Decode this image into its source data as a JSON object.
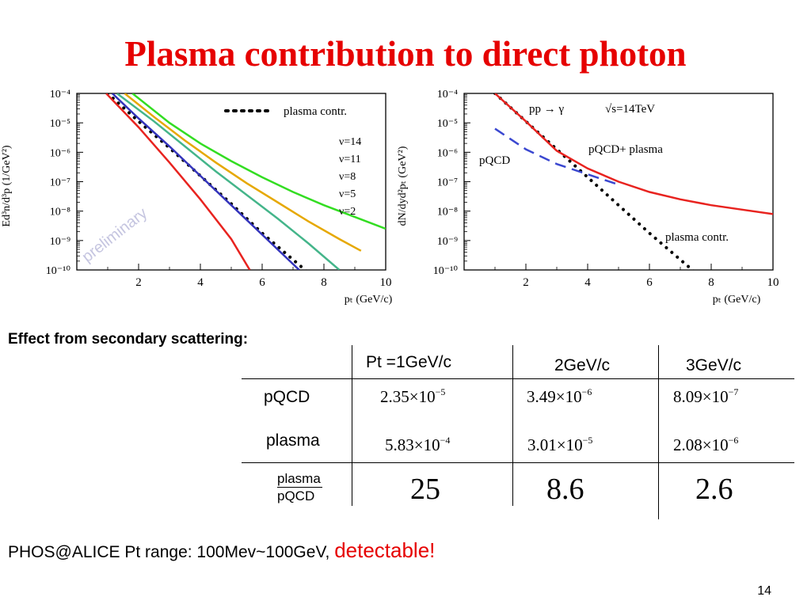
{
  "slide": {
    "title": "Plasma contribution to direct photon",
    "page_number": "14"
  },
  "plot_left": {
    "ylabel": "Ed³n/d³p (1/GeV²)",
    "xlabel": "pₜ (GeV/c)",
    "y_ticks": [
      "10⁻⁴",
      "10⁻⁵",
      "10⁻⁶",
      "10⁻⁷",
      "10⁻⁸",
      "10⁻⁹",
      "10⁻¹⁰"
    ],
    "x_ticks": [
      "2",
      "4",
      "6",
      "8",
      "10"
    ],
    "legend_plasma": "plasma contr.",
    "legend_nus": [
      "ν=14",
      "ν=11",
      "ν=8",
      "ν=5",
      "ν=2"
    ],
    "watermark": "preliminary"
  },
  "plot_right": {
    "ylabel": "dN/dyd²pₜ (GeV²)",
    "xlabel": "pₜ (GeV/c)",
    "y_ticks": [
      "10⁻⁴",
      "10⁻⁵",
      "10⁻⁶",
      "10⁻⁷",
      "10⁻⁸",
      "10⁻⁹",
      "10⁻¹⁰"
    ],
    "x_ticks": [
      "2",
      "4",
      "6",
      "8",
      "10"
    ],
    "process": "pp → γ",
    "energy": "√s=14TeV",
    "label_pqcd": "pQCD",
    "label_sum": "pQCD+ plasma",
    "label_plasma": "plasma contr."
  },
  "chart_data": [
    {
      "type": "line",
      "xlabel": "pₜ (GeV/c)",
      "ylabel": "Ed³n/d³p (1/GeV²)",
      "xlim": [
        0,
        10
      ],
      "ylim_log10": [
        -10,
        -4
      ],
      "y_scale": "log",
      "series": [
        {
          "name": "plasma contr.",
          "style": "dotted",
          "color": "#000000",
          "x": [
            1.0,
            2,
            3,
            4,
            5,
            6,
            7,
            7.5
          ],
          "y_log10": [
            -4,
            -4.95,
            -5.85,
            -6.8,
            -7.75,
            -8.75,
            -9.65,
            -10.1
          ]
        },
        {
          "name": "ν=14",
          "color": "#33dd22",
          "x": [
            1.8,
            3,
            4,
            5,
            6,
            7,
            8,
            9,
            10
          ],
          "y_log10": [
            -4,
            -5.0,
            -5.7,
            -6.3,
            -6.85,
            -7.35,
            -7.8,
            -8.2,
            -8.6
          ]
        },
        {
          "name": "ν=11",
          "color": "#e6a800",
          "x": [
            1.55,
            2.5,
            3.5,
            4.5,
            5.5,
            6.5,
            7.5,
            8.5,
            9.2
          ],
          "y_log10": [
            -4,
            -4.8,
            -5.6,
            -6.35,
            -7.05,
            -7.7,
            -8.35,
            -8.95,
            -9.35
          ]
        },
        {
          "name": "ν=8",
          "color": "#44b58a",
          "x": [
            1.3,
            2.5,
            3.5,
            4.5,
            5.5,
            6.5,
            7.5,
            8.5
          ],
          "y_log10": [
            -4,
            -4.95,
            -5.8,
            -6.65,
            -7.45,
            -8.25,
            -9.1,
            -10.0
          ]
        },
        {
          "name": "ν=5",
          "color": "#3333bb",
          "x": [
            1.15,
            2,
            3,
            4,
            5,
            6,
            7.2
          ],
          "y_log10": [
            -4,
            -4.85,
            -5.8,
            -6.8,
            -7.8,
            -8.8,
            -10.0
          ]
        },
        {
          "name": "ν=2",
          "color": "#e8231f",
          "x": [
            0.95,
            2,
            3,
            4,
            5,
            5.6
          ],
          "y_log10": [
            -4,
            -5.15,
            -6.35,
            -7.6,
            -8.95,
            -10.0
          ]
        }
      ]
    },
    {
      "type": "line",
      "xlabel": "pₜ (GeV/c)",
      "ylabel": "dN/dyd²pₜ (GeV²)",
      "xlim": [
        0,
        10
      ],
      "ylim_log10": [
        -10,
        -4
      ],
      "y_scale": "log",
      "series": [
        {
          "name": "plasma contr.",
          "style": "dotted",
          "color": "#000000",
          "x": [
            1.0,
            2,
            3,
            4,
            5,
            6,
            7,
            7.5
          ],
          "y_log10": [
            -4,
            -4.95,
            -5.9,
            -6.85,
            -7.8,
            -8.75,
            -9.65,
            -10.1
          ]
        },
        {
          "name": "pQCD",
          "style": "dashed",
          "color": "#3b48d0",
          "x": [
            1.0,
            2,
            3,
            4,
            5
          ],
          "y_log10": [
            -5.2,
            -5.9,
            -6.4,
            -6.75,
            -7.1
          ]
        },
        {
          "name": "pQCD+ plasma",
          "color": "#e8231f",
          "x": [
            1.0,
            2,
            3,
            4,
            5,
            6,
            7,
            8,
            9,
            10
          ],
          "y_log10": [
            -4,
            -4.95,
            -5.95,
            -6.55,
            -7.0,
            -7.35,
            -7.6,
            -7.8,
            -7.95,
            -8.1
          ]
        }
      ]
    },
    {
      "type": "table",
      "title": "Effect from secondary scattering:",
      "columns": [
        "Pt =1GeV/c",
        "2GeV/c",
        "3GeV/c"
      ],
      "rows": [
        {
          "label": "pQCD",
          "values": [
            "2.35×10⁻⁵",
            "3.49×10⁻⁶",
            "8.09×10⁻⁷"
          ]
        },
        {
          "label": "plasma",
          "values": [
            "5.83×10⁻⁴",
            "3.01×10⁻⁵",
            "2.08×10⁻⁶"
          ]
        },
        {
          "label": "plasma/pQCD",
          "values": [
            "25",
            "8.6",
            "2.6"
          ]
        }
      ]
    }
  ],
  "table": {
    "heading": "Effect from secondary scattering:",
    "col1": "Pt =1GeV/c",
    "col2": "2GeV/c",
    "col3": "3GeV/c",
    "row_pqcd": "pQCD",
    "row_plasma": "plasma",
    "ratio_num": "plasma",
    "ratio_den": "pQCD",
    "pqcd": [
      {
        "m": "2.35×10",
        "e": "−5"
      },
      {
        "m": "3.49×10",
        "e": "−6"
      },
      {
        "m": "8.09×10",
        "e": "−7"
      }
    ],
    "plasma": [
      {
        "m": "5.83×10",
        "e": "−4"
      },
      {
        "m": "3.01×10",
        "e": "−5"
      },
      {
        "m": "2.08×10",
        "e": "−6"
      }
    ],
    "ratio": [
      "25",
      "8.6",
      "2.6"
    ]
  },
  "footer": {
    "text": "PHOS@ALICE  Pt range:  100Mev~100GeV, ",
    "emphasis": "detectable!"
  }
}
